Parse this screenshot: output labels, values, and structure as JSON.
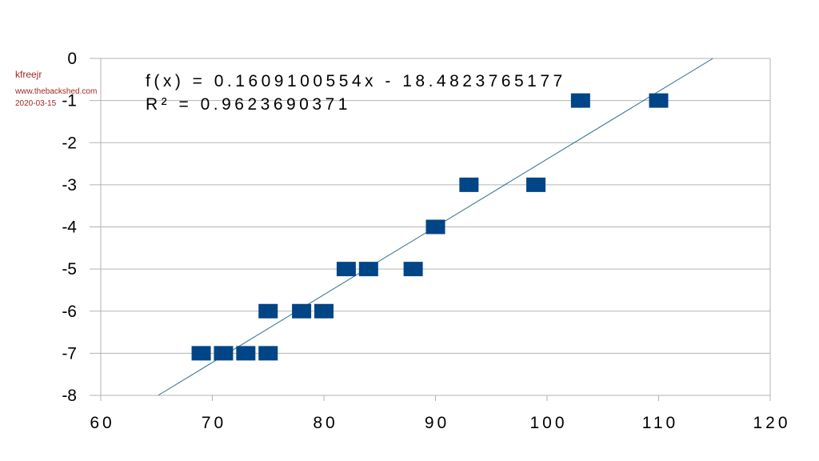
{
  "watermark": {
    "user": "kfreejr",
    "site": "www.thebackshed.com",
    "date": "2020-03-15"
  },
  "chart_data": {
    "type": "scatter",
    "title": "",
    "xlabel": "",
    "ylabel": "",
    "xlim": [
      60,
      120
    ],
    "ylim": [
      -8,
      0
    ],
    "x_ticks": [
      "60",
      "70",
      "80",
      "90",
      "100",
      "110",
      "120"
    ],
    "y_ticks": [
      "0",
      "-1",
      "-2",
      "-3",
      "-4",
      "-5",
      "-6",
      "-7",
      "-8"
    ],
    "grid": "horizontal",
    "marker_color": "#004586",
    "trendline_color": "#2e6f8e",
    "points": [
      {
        "x": 69,
        "y": -7
      },
      {
        "x": 71,
        "y": -7
      },
      {
        "x": 73,
        "y": -7
      },
      {
        "x": 75,
        "y": -7
      },
      {
        "x": 75,
        "y": -6
      },
      {
        "x": 78,
        "y": -6
      },
      {
        "x": 80,
        "y": -6
      },
      {
        "x": 82,
        "y": -5
      },
      {
        "x": 84,
        "y": -5
      },
      {
        "x": 88,
        "y": -5
      },
      {
        "x": 90,
        "y": -4
      },
      {
        "x": 93,
        "y": -3
      },
      {
        "x": 99,
        "y": -3
      },
      {
        "x": 103,
        "y": -1
      },
      {
        "x": 110,
        "y": -1
      }
    ],
    "trendline": {
      "slope": 0.1609100554,
      "intercept": -18.4823765177,
      "equation": "f(x) = 0.1609100554x - 18.4823765177",
      "r_squared": "R² = 0.9623690371"
    }
  }
}
